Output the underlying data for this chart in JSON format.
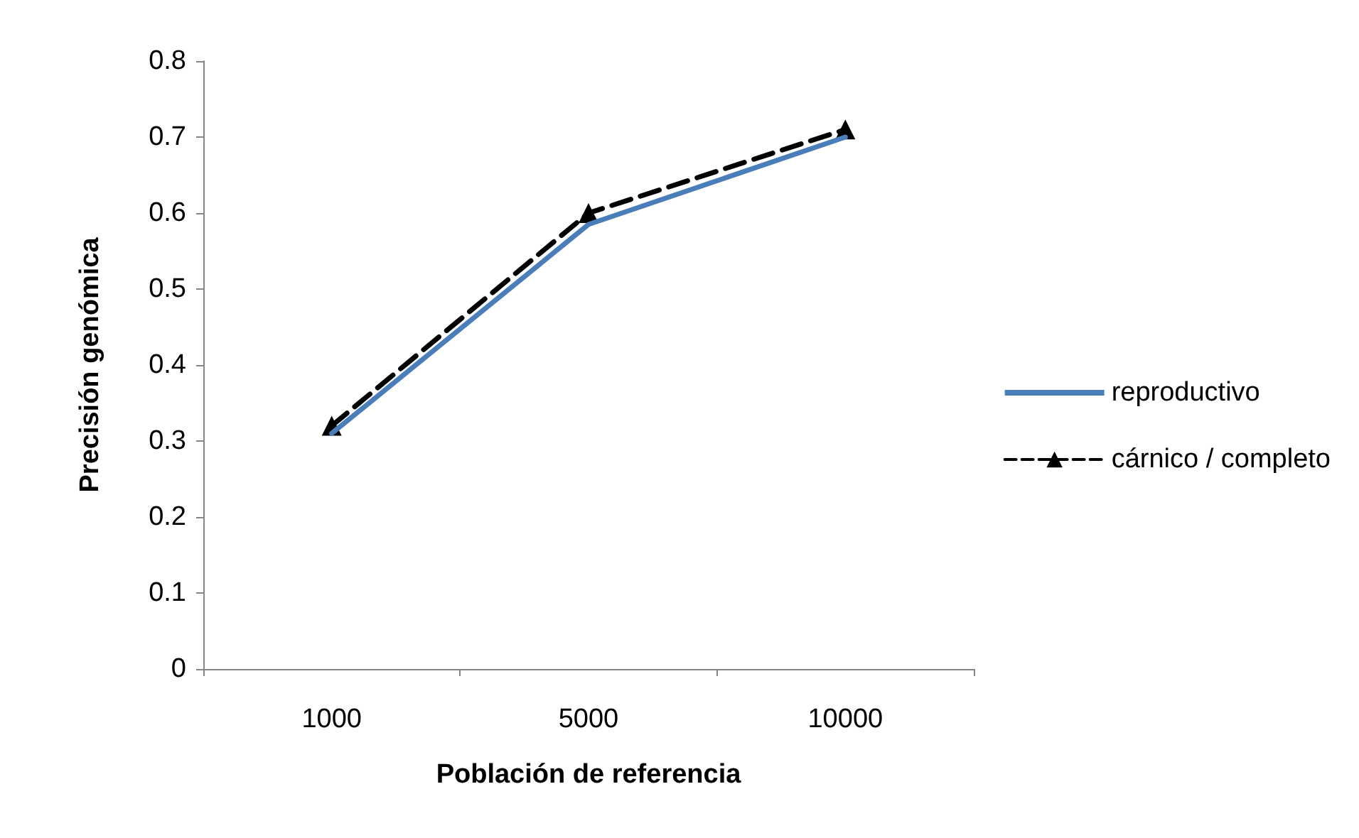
{
  "chart_data": {
    "type": "line",
    "xlabel": "Población de referencia",
    "ylabel": "Precisión genómica",
    "categories": [
      "1000",
      "5000",
      "10000"
    ],
    "series": [
      {
        "name": "reproductivo",
        "color": "#4a7ebb",
        "values": [
          0.31,
          0.585,
          0.7
        ],
        "marker": "none",
        "line_style": "solid"
      },
      {
        "name": "cárnico / completo",
        "color": "#000000",
        "values": [
          0.32,
          0.6,
          0.71
        ],
        "marker": "triangle",
        "line_style": "dashed"
      }
    ],
    "ylim": [
      0,
      0.8
    ],
    "yticks": [
      0,
      0.1,
      0.2,
      0.3,
      0.4,
      0.5,
      0.6,
      0.7,
      0.8
    ],
    "grid": false,
    "legend": "right"
  }
}
